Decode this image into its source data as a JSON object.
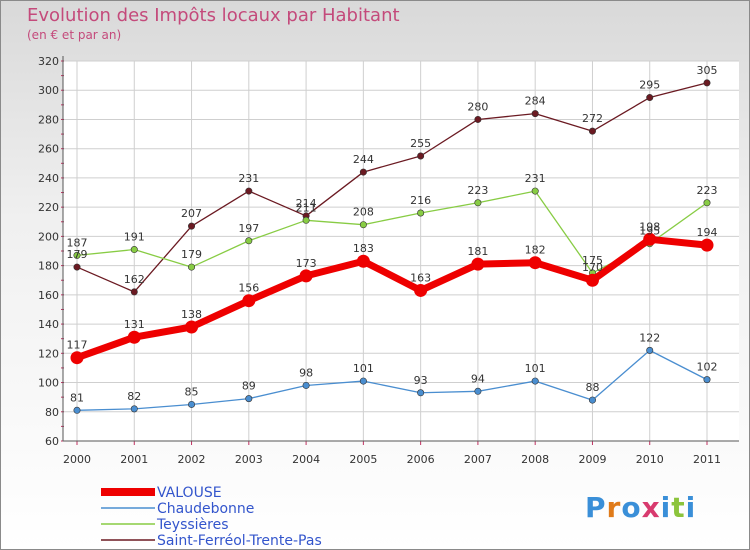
{
  "title": "Evolution des Impôts locaux par Habitant",
  "subtitle": "(en € et par an)",
  "logo": "Proxiti",
  "chart_data": {
    "type": "line",
    "title": "Evolution des Impôts locaux par Habitant",
    "subtitle": "(en € et par an)",
    "xlabel": "",
    "ylabel": "",
    "categories": [
      "2000",
      "2001",
      "2002",
      "2003",
      "2004",
      "2005",
      "2006",
      "2007",
      "2008",
      "2009",
      "2010",
      "2011"
    ],
    "ylim": [
      60,
      320
    ],
    "yticks": [
      60,
      80,
      100,
      120,
      140,
      160,
      180,
      200,
      220,
      240,
      260,
      280,
      300,
      320
    ],
    "grid": true,
    "legend_position": "bottom-left",
    "series": [
      {
        "name": "Saint-Ferréol-Trente-Pas",
        "color": "#6b1a22",
        "values": [
          179,
          162,
          207,
          231,
          214,
          244,
          255,
          280,
          284,
          272,
          295,
          305
        ]
      },
      {
        "name": "Teyssières",
        "color": "#88cc44",
        "values": [
          187,
          191,
          179,
          197,
          211,
          208,
          216,
          223,
          231,
          175,
          195,
          223
        ]
      },
      {
        "name": "Chaudebonne",
        "color": "#4a8ed0",
        "values": [
          81,
          82,
          85,
          89,
          98,
          101,
          93,
          94,
          101,
          88,
          122,
          102
        ]
      },
      {
        "name": "VALOUSE",
        "color": "#ee0000",
        "values": [
          117,
          131,
          138,
          156,
          173,
          183,
          163,
          181,
          182,
          170,
          198,
          194
        ]
      }
    ]
  }
}
